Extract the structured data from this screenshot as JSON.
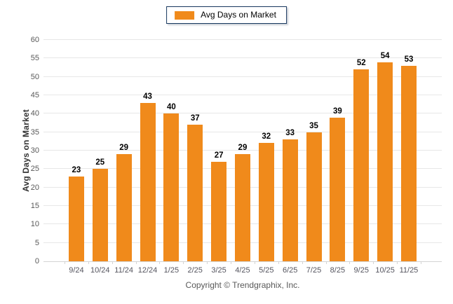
{
  "legend": {
    "label": "Avg Days on Market"
  },
  "footer": {
    "copyright": "Copyright © Trendgraphix, Inc."
  },
  "colors": {
    "bar": "#F08A1B",
    "legend_border": "#17375E",
    "grid": "#E7E7E7",
    "baseline": "#D4D4D4",
    "tick": "#D4D4D4",
    "y_tick_text": "#595959",
    "x_tick_text": "#55555F",
    "value_text": "#000000",
    "y_title_text": "#333333",
    "footer_text": "#595959"
  },
  "chart_data": {
    "type": "bar",
    "categories": [
      "9/24",
      "10/24",
      "11/24",
      "12/24",
      "1/25",
      "2/25",
      "3/25",
      "4/25",
      "5/25",
      "6/25",
      "7/25",
      "8/25",
      "9/25",
      "10/25",
      "11/25"
    ],
    "values": [
      23,
      25,
      29,
      43,
      40,
      37,
      27,
      29,
      32,
      33,
      35,
      39,
      52,
      54,
      53
    ],
    "title": "",
    "xlabel": "",
    "ylabel": "Avg Days on Market",
    "ylim": [
      0,
      60
    ],
    "ytick_step": 5,
    "grid": true,
    "data_labels": true,
    "legend_entries": [
      "Avg Days on Market"
    ],
    "legend_position": "top-center"
  }
}
